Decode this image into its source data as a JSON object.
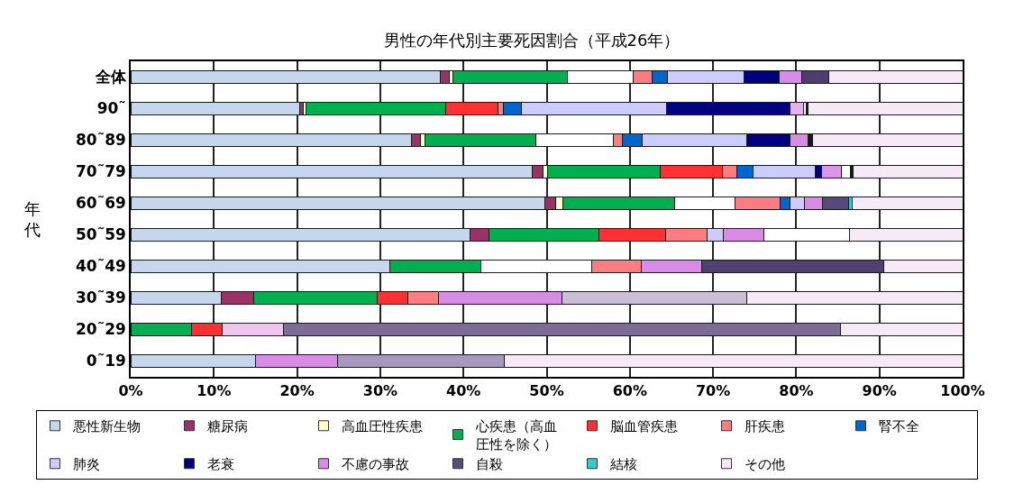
{
  "chart_data": {
    "type": "bar",
    "orientation": "horizontal",
    "stacked": true,
    "title": "男性の年代別主要死因割合（平成26年）",
    "ylabel": "年代",
    "categories": [
      "全体",
      "90˜",
      "80˜89",
      "70˜79",
      "60˜69",
      "50˜59",
      "40˜49",
      "30˜39",
      "20˜29",
      "0˜19"
    ],
    "xlim": [
      0,
      100
    ],
    "xticks": [
      {
        "value": 0,
        "label": "0%"
      },
      {
        "value": 10,
        "label": "10%"
      },
      {
        "value": 20,
        "label": "20%"
      },
      {
        "value": 30,
        "label": "30%"
      },
      {
        "value": 40,
        "label": "40%"
      },
      {
        "value": 50,
        "label": "50%"
      },
      {
        "value": 60,
        "label": "60%"
      },
      {
        "value": 70,
        "label": "70%"
      },
      {
        "value": 80,
        "label": "80%"
      },
      {
        "value": 90,
        "label": "90%"
      },
      {
        "value": 100,
        "label": "100%"
      }
    ],
    "grid": "x",
    "legend": "bottom",
    "series": [
      {
        "name": "悪性新生物",
        "color": "#c6d6ec",
        "values": [
          37.2,
          20.3,
          33.8,
          48.3,
          49.8,
          40.8,
          31.2,
          10.9,
          0,
          15.0
        ]
      },
      {
        "name": "糖尿病",
        "color": "#993366",
        "values": [
          1.1,
          0.4,
          1.0,
          1.3,
          1.3,
          2.3,
          0,
          3.9,
          0,
          0
        ]
      },
      {
        "name": "高血圧性疾患",
        "color": "#ffffcc",
        "values": [
          0.4,
          0.4,
          0.6,
          0.5,
          0.8,
          0,
          0,
          0,
          0,
          0
        ]
      },
      {
        "name": "心疾患（高血圧性を除く）",
        "color": "#00b050",
        "values": [
          13.8,
          16.8,
          13.3,
          13.6,
          13.5,
          13.2,
          10.9,
          14.8,
          7.3,
          0
        ]
      },
      {
        "name": "脳血管疾患",
        "color": "#ff3030",
        "colors": [
          "#ffffff",
          "#ff3030",
          "#ffffff",
          "#ff3030",
          "#ffffff",
          "#ff3030",
          "#ffffff",
          "#ff3030",
          "#ff3030",
          "#ff3030"
        ],
        "values": [
          7.9,
          6.3,
          9.3,
          7.4,
          7.2,
          8.0,
          13.3,
          3.7,
          3.7,
          0
        ]
      },
      {
        "name": "肝疾患",
        "color": "#ff7c80",
        "values": [
          2.3,
          0.6,
          1.1,
          1.8,
          5.5,
          5.0,
          6.0,
          3.7,
          0,
          0
        ]
      },
      {
        "name": "腎不全",
        "color": "#0066cc",
        "values": [
          1.8,
          2.2,
          2.4,
          1.9,
          1.1,
          0,
          0,
          0,
          0,
          0
        ]
      },
      {
        "name": "肺炎",
        "color": "#ccccff",
        "values": [
          9.2,
          17.4,
          12.5,
          7.5,
          1.8,
          1.9,
          0,
          0,
          0,
          0
        ]
      },
      {
        "name": "老衰",
        "color": "#000080",
        "values": [
          4.3,
          14.9,
          5.2,
          0.7,
          0,
          0,
          0,
          0,
          0,
          0
        ]
      },
      {
        "name": "不慮の事故",
        "color": "#d98ce6",
        "colors": [
          "#d98ce6",
          "#e8b0ee",
          "#d98ce6",
          "#dc96e8",
          "#d98ce6",
          "#d98ce6",
          "#d98ce6",
          "#d98ce6",
          "#f0c4f0",
          "#d98ce6"
        ],
        "values": [
          2.7,
          1.6,
          2.2,
          2.4,
          2.2,
          4.9,
          7.2,
          14.8,
          7.4,
          9.9
        ]
      },
      {
        "name": "自殺",
        "color": "#5a4a80",
        "colors": [
          "#4b3d6e",
          "#ffffff",
          "#1a1a1a",
          "#ffffff",
          "#554a7a",
          "#ffffff",
          "#4f3f73",
          "#c9c0d8",
          "#7d6c9a",
          "#a698bf"
        ],
        "values": [
          3.2,
          0.3,
          0.3,
          1.1,
          3.1,
          10.3,
          21.9,
          22.3,
          66.9,
          20.0
        ]
      },
      {
        "name": "結核",
        "color": "#33cccc",
        "colors": [
          "#33cccc",
          "#1a1a1a",
          "#1a1a1a",
          "#1a1a1a",
          "#33cccc",
          "#33cccc",
          "#33cccc",
          "#33cccc",
          "#33cccc",
          "#33cccc"
        ],
        "values": [
          0,
          0.2,
          0.3,
          0.3,
          0.4,
          0,
          0,
          0,
          0,
          0
        ]
      },
      {
        "name": "その他",
        "color": "#f6eaf6",
        "values": [
          16.1,
          18.6,
          18.0,
          13.2,
          13.3,
          13.6,
          9.5,
          25.9,
          14.7,
          55.1
        ]
      }
    ]
  }
}
